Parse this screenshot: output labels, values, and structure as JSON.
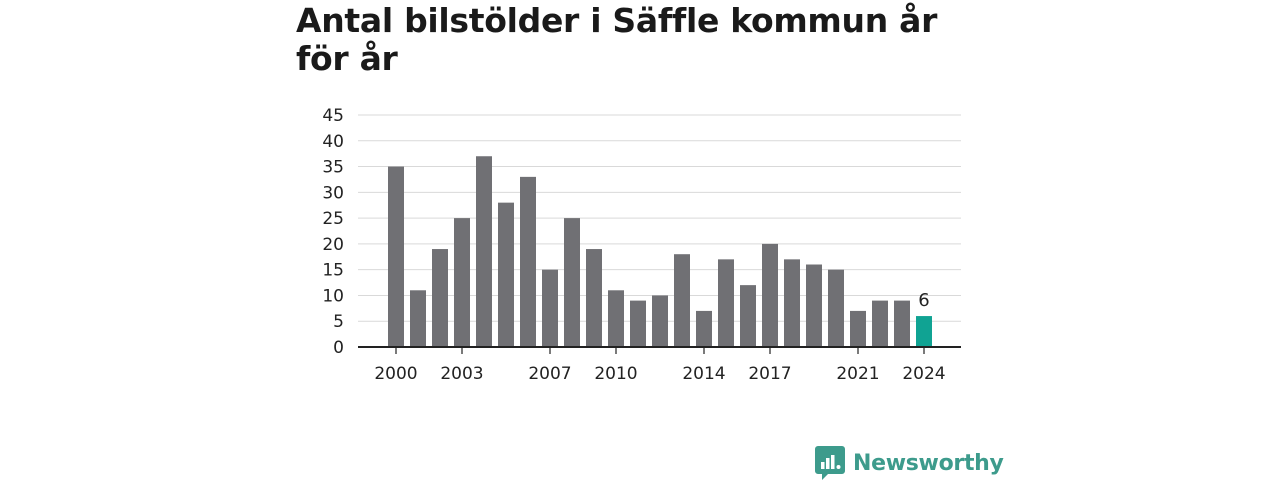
{
  "title": "Antal bilstölder i Säffle kommun år för år",
  "brand": {
    "name": "Newsworthy",
    "icon": "newsworthy-logo-icon",
    "color": "#3d9b8c"
  },
  "colors": {
    "bar": "#707074",
    "highlight": "#10a393",
    "grid": "#d9d9d9",
    "axis": "#222222"
  },
  "chart_data": {
    "type": "bar",
    "title": "Antal bilstölder i Säffle kommun år för år",
    "xlabel": "",
    "ylabel": "",
    "categories": [
      "2000",
      "2001",
      "2002",
      "2003",
      "2004",
      "2005",
      "2006",
      "2007",
      "2008",
      "2009",
      "2010",
      "2011",
      "2012",
      "2013",
      "2014",
      "2015",
      "2016",
      "2017",
      "2018",
      "2019",
      "2020",
      "2021",
      "2022",
      "2023",
      "2024"
    ],
    "values": [
      35,
      11,
      19,
      25,
      37,
      28,
      33,
      15,
      25,
      19,
      11,
      9,
      10,
      18,
      7,
      17,
      12,
      20,
      17,
      16,
      15,
      7,
      9,
      9,
      6
    ],
    "x_tick_labels": [
      "2000",
      "2003",
      "2007",
      "2010",
      "2014",
      "2017",
      "2021",
      "2024"
    ],
    "y_ticks": [
      0,
      5,
      10,
      15,
      20,
      25,
      30,
      35,
      40,
      45
    ],
    "ylim": [
      0,
      45
    ],
    "grid": true,
    "highlight_category": "2024",
    "data_labels": [
      {
        "category": "2024",
        "text": "6"
      }
    ]
  }
}
